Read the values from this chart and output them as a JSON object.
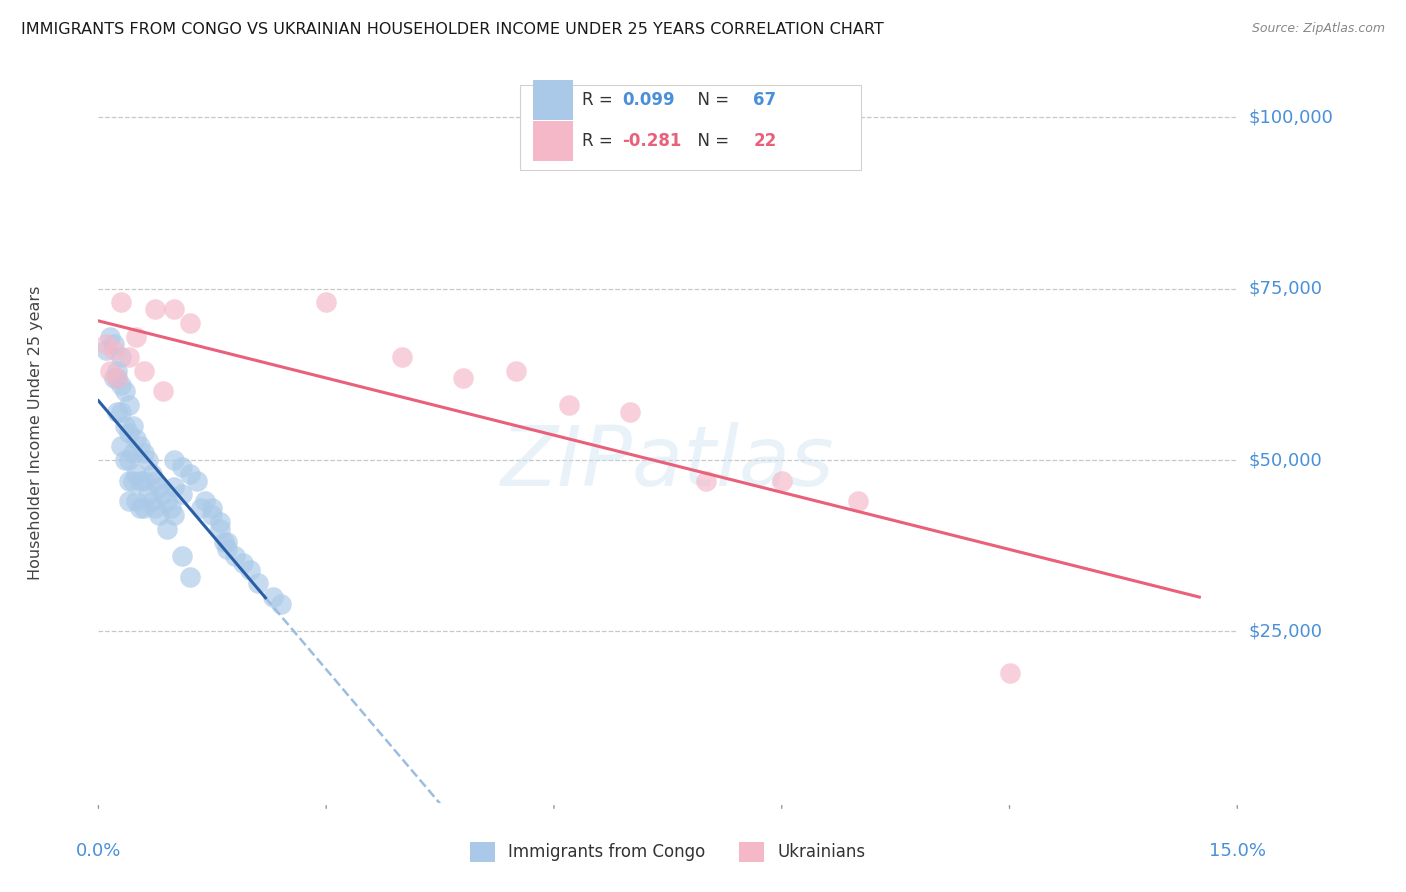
{
  "title": "IMMIGRANTS FROM CONGO VS UKRAINIAN HOUSEHOLDER INCOME UNDER 25 YEARS CORRELATION CHART",
  "source": "Source: ZipAtlas.com",
  "ylabel": "Householder Income Under 25 years",
  "legend_labels": [
    "Immigrants from Congo",
    "Ukrainians"
  ],
  "congo_color": "#aac9e8",
  "congo_line_color": "#2a5fa8",
  "ukr_color": "#f5b8c8",
  "ukr_line_color": "#e8607a",
  "dashed_line_color": "#9bbde0",
  "axis_label_color": "#4a90d9",
  "background_color": "#ffffff",
  "grid_color": "#c8c8c8",
  "xlim": [
    0.0,
    0.15
  ],
  "ylim": [
    0,
    108000
  ],
  "yticks": [
    25000,
    50000,
    75000,
    100000
  ],
  "ytick_labels": [
    "$25,000",
    "$50,000",
    "$75,000",
    "$100,000"
  ],
  "congo_x": [
    0.001,
    0.0015,
    0.002,
    0.002,
    0.0025,
    0.0025,
    0.0025,
    0.003,
    0.003,
    0.003,
    0.003,
    0.0035,
    0.0035,
    0.0035,
    0.004,
    0.004,
    0.004,
    0.004,
    0.004,
    0.0045,
    0.0045,
    0.0045,
    0.005,
    0.005,
    0.005,
    0.0055,
    0.0055,
    0.0055,
    0.006,
    0.006,
    0.006,
    0.0065,
    0.0065,
    0.007,
    0.007,
    0.0075,
    0.0075,
    0.008,
    0.008,
    0.0085,
    0.009,
    0.009,
    0.0095,
    0.01,
    0.01,
    0.01,
    0.011,
    0.011,
    0.012,
    0.013,
    0.0135,
    0.014,
    0.015,
    0.016,
    0.0165,
    0.017,
    0.018,
    0.019,
    0.02,
    0.021,
    0.023,
    0.024,
    0.015,
    0.016,
    0.017,
    0.011,
    0.012
  ],
  "congo_y": [
    66000,
    68000,
    67000,
    62000,
    63000,
    62000,
    57000,
    65000,
    61000,
    57000,
    52000,
    60000,
    55000,
    50000,
    58000,
    54000,
    50000,
    47000,
    44000,
    55000,
    51000,
    47000,
    53000,
    48000,
    44000,
    52000,
    47000,
    43000,
    51000,
    47000,
    43000,
    50000,
    45000,
    48000,
    44000,
    47000,
    43000,
    46000,
    42000,
    45000,
    44000,
    40000,
    43000,
    50000,
    46000,
    42000,
    49000,
    45000,
    48000,
    47000,
    43000,
    44000,
    42000,
    41000,
    38000,
    37000,
    36000,
    35000,
    34000,
    32000,
    30000,
    29000,
    43000,
    40000,
    38000,
    36000,
    33000
  ],
  "ukr_x": [
    0.001,
    0.0015,
    0.002,
    0.0025,
    0.003,
    0.004,
    0.005,
    0.006,
    0.0075,
    0.0085,
    0.01,
    0.012,
    0.03,
    0.04,
    0.048,
    0.055,
    0.062,
    0.07,
    0.08,
    0.09,
    0.1,
    0.12
  ],
  "ukr_y": [
    67000,
    63000,
    66000,
    62000,
    73000,
    65000,
    68000,
    63000,
    72000,
    60000,
    72000,
    70000,
    73000,
    65000,
    62000,
    63000,
    58000,
    57000,
    47000,
    47000,
    44000,
    19000
  ]
}
